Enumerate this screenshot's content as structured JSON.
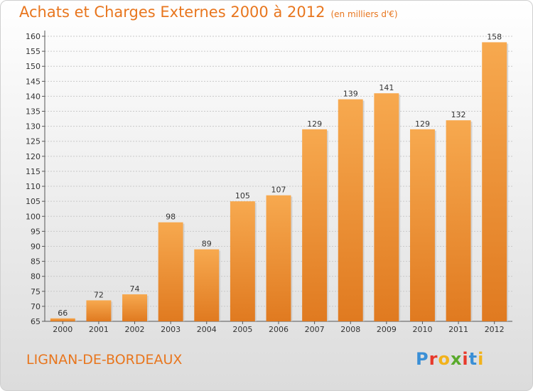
{
  "header": {
    "title": "Achats et Charges Externes 2000 à 2012",
    "subtitle": "(en milliers d'€)"
  },
  "footer": {
    "commune": "LIGNAN-DE-BORDEAUX",
    "logo_text": "Proxiti",
    "logo_colors": [
      "#3a8fd6",
      "#e8392b",
      "#f2b21b",
      "#5aaa2c",
      "#e8392b",
      "#3a8fd6",
      "#f2b21b"
    ]
  },
  "chart_data": {
    "type": "bar",
    "categories": [
      "2000",
      "2001",
      "2002",
      "2003",
      "2004",
      "2005",
      "2006",
      "2007",
      "2008",
      "2009",
      "2010",
      "2011",
      "2012"
    ],
    "values": [
      66,
      72,
      74,
      98,
      89,
      105,
      107,
      129,
      139,
      141,
      129,
      132,
      158
    ],
    "data_labels": [
      "66",
      "72",
      "74",
      "98",
      "89",
      "105",
      "107",
      "129",
      "139",
      "141",
      "129",
      "132",
      "158"
    ],
    "ylim": [
      65,
      160
    ],
    "yticks": [
      65,
      70,
      75,
      80,
      85,
      90,
      95,
      100,
      105,
      110,
      115,
      120,
      125,
      130,
      135,
      140,
      145,
      150,
      155,
      160
    ],
    "grid": true,
    "bar_color_top": "#f7a94f",
    "bar_color_bottom": "#e07a20"
  }
}
